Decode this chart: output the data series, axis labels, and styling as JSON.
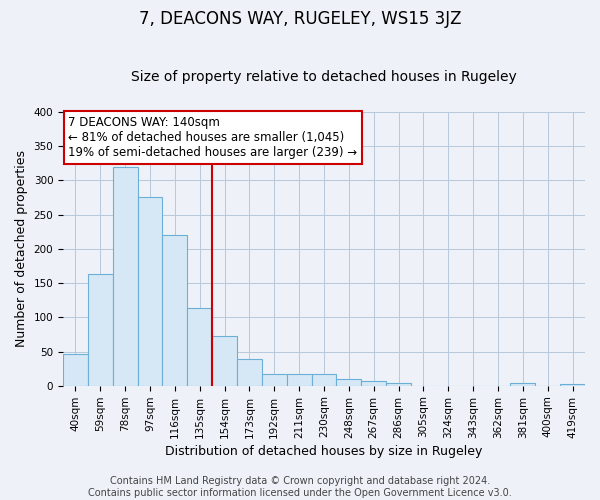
{
  "title": "7, DEACONS WAY, RUGELEY, WS15 3JZ",
  "subtitle": "Size of property relative to detached houses in Rugeley",
  "xlabel": "Distribution of detached houses by size in Rugeley",
  "ylabel": "Number of detached properties",
  "bar_labels": [
    "40sqm",
    "59sqm",
    "78sqm",
    "97sqm",
    "116sqm",
    "135sqm",
    "154sqm",
    "173sqm",
    "192sqm",
    "211sqm",
    "230sqm",
    "248sqm",
    "267sqm",
    "286sqm",
    "305sqm",
    "324sqm",
    "343sqm",
    "362sqm",
    "381sqm",
    "400sqm",
    "419sqm"
  ],
  "bar_values": [
    47,
    163,
    320,
    276,
    221,
    114,
    72,
    39,
    17,
    17,
    17,
    10,
    7,
    4,
    0,
    0,
    0,
    0,
    4,
    0,
    2
  ],
  "bar_color": "#d6e8f5",
  "bar_edge_color": "#6baed6",
  "property_line_label": "7 DEACONS WAY: 140sqm",
  "annotation_line1": "← 81% of detached houses are smaller (1,045)",
  "annotation_line2": "19% of semi-detached houses are larger (239) →",
  "red_line_index": 5.5,
  "ylim": [
    0,
    400
  ],
  "yticks": [
    0,
    50,
    100,
    150,
    200,
    250,
    300,
    350,
    400
  ],
  "footer_line1": "Contains HM Land Registry data © Crown copyright and database right 2024.",
  "footer_line2": "Contains public sector information licensed under the Open Government Licence v3.0.",
  "bg_color": "#eef2f8",
  "plot_bg_color": "#eef2f8",
  "title_fontsize": 12,
  "subtitle_fontsize": 10,
  "axis_label_fontsize": 9,
  "tick_fontsize": 7.5,
  "footer_fontsize": 7
}
